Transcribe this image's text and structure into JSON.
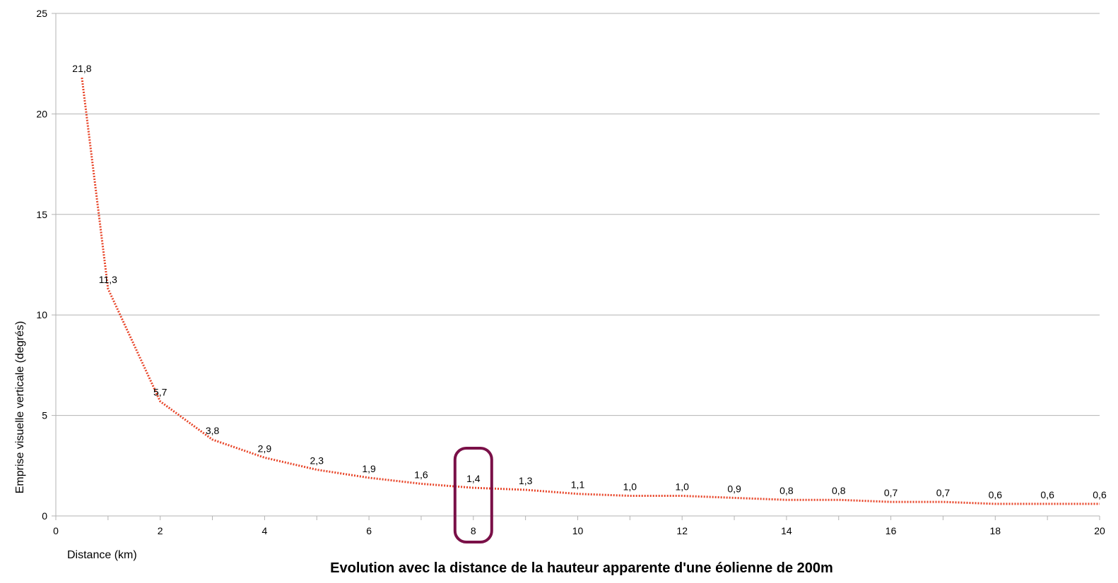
{
  "chart_data": {
    "type": "line",
    "title": "Evolution avec la distance de la hauteur apparente d'une éolienne de 200m",
    "xlabel": "Distance (km)",
    "ylabel": "Emprise visuelle verticale (degrés)",
    "xlim": [
      0,
      20
    ],
    "ylim": [
      0,
      25
    ],
    "x_ticks": [
      "0",
      "2",
      "4",
      "6",
      "8",
      "10",
      "12",
      "14",
      "16",
      "18",
      "20"
    ],
    "y_ticks": [
      "0",
      "5",
      "10",
      "15",
      "20",
      "25"
    ],
    "grid": "horizontal",
    "series": [
      {
        "color": "#e8462a",
        "style": "dotted",
        "x": [
          0.5,
          1,
          2,
          3,
          4,
          5,
          6,
          7,
          8,
          9,
          10,
          11,
          12,
          13,
          14,
          15,
          16,
          17,
          18,
          19,
          20
        ],
        "y": [
          21.8,
          11.3,
          5.7,
          3.8,
          2.9,
          2.3,
          1.9,
          1.6,
          1.4,
          1.3,
          1.1,
          1.0,
          1.0,
          0.9,
          0.8,
          0.8,
          0.7,
          0.7,
          0.6,
          0.6,
          0.6
        ],
        "labels": [
          "21,8",
          "11,3",
          "5,7",
          "3,8",
          "2,9",
          "2,3",
          "1,9",
          "1,6",
          "1,4",
          "1,3",
          "1,1",
          "1,0",
          "1,0",
          "0,9",
          "0,8",
          "0,8",
          "0,7",
          "0,7",
          "0,6",
          "0,6",
          "0,6"
        ]
      }
    ],
    "highlight": {
      "x": 8,
      "color": "#7a1048"
    }
  }
}
